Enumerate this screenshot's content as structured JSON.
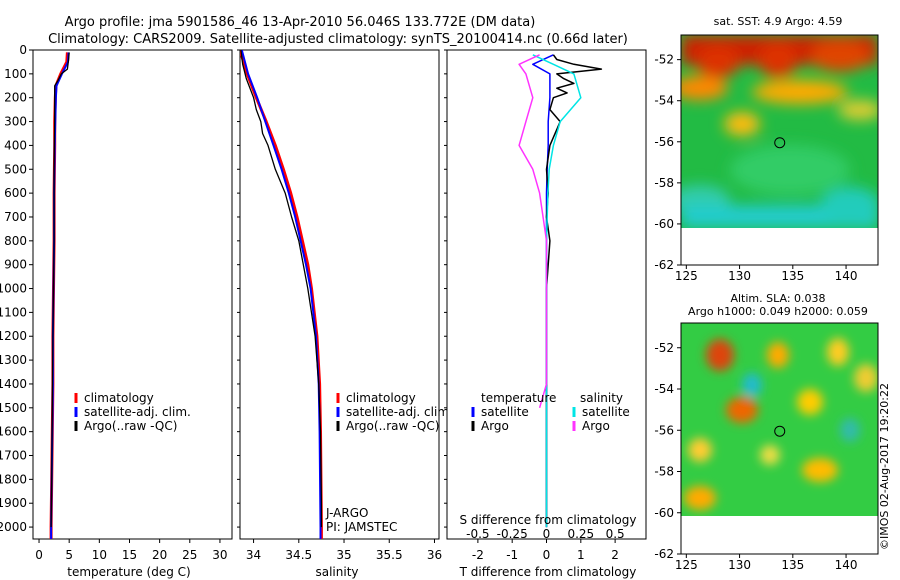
{
  "header": {
    "line1": "Argo profile: jma 5901586_46 13-Apr-2010 56.046S 133.772E (DM data)",
    "line2": "Climatology: CARS2009. Satellite-adjusted climatology: synTS_20100414.nc (0.66d later)"
  },
  "depth_ticks": [
    0,
    100,
    200,
    300,
    400,
    500,
    600,
    700,
    800,
    900,
    1000,
    1100,
    1200,
    1300,
    1400,
    1500,
    1600,
    1700,
    1800,
    1900,
    2000
  ],
  "colors": {
    "climatology": "#ff0000",
    "satellite": "#0000ff",
    "argo": "#000000",
    "sal_satellite": "#00e5e5",
    "sal_argo": "#ff33ff"
  },
  "chart_data": [
    {
      "type": "line",
      "panel": "temperature",
      "xlabel": "temperature (deg C)",
      "xlim": [
        -1,
        32
      ],
      "ylim": [
        2050,
        0
      ],
      "xticks": [
        0,
        5,
        10,
        15,
        20,
        25,
        30
      ],
      "legend": [
        "climatology",
        "satellite-adj. clim.",
        "Argo(..raw -QC)"
      ],
      "series": [
        {
          "name": "climatology",
          "depth": [
            10,
            50,
            100,
            150,
            200,
            300,
            400,
            600,
            800,
            1000,
            1200,
            1400,
            1600,
            1800,
            2000,
            2050
          ],
          "values": [
            4.7,
            4.6,
            3.6,
            2.8,
            2.7,
            2.6,
            2.6,
            2.5,
            2.5,
            2.4,
            2.3,
            2.3,
            2.2,
            2.1,
            2.0,
            2.0
          ]
        },
        {
          "name": "satellite-adj. clim.",
          "depth": [
            10,
            50,
            100,
            150,
            200,
            300,
            400,
            600,
            800,
            1000,
            1200,
            1400,
            1600,
            1800,
            2000,
            2050
          ],
          "values": [
            4.9,
            4.8,
            3.8,
            2.9,
            2.8,
            2.7,
            2.6,
            2.5,
            2.5,
            2.4,
            2.3,
            2.3,
            2.2,
            2.1,
            2.0,
            2.0
          ]
        },
        {
          "name": "Argo(..raw -QC)",
          "depth": [
            10,
            40,
            80,
            100,
            130,
            150,
            200,
            300,
            500,
            800,
            1200,
            1500,
            1800,
            2000
          ],
          "values": [
            5.0,
            4.9,
            4.7,
            3.7,
            3.1,
            2.6,
            2.6,
            2.6,
            2.5,
            2.5,
            2.3,
            2.2,
            2.1,
            2.0
          ]
        }
      ]
    },
    {
      "type": "line",
      "panel": "salinity",
      "xlabel": "salinity",
      "xlim": [
        33.85,
        36.05
      ],
      "ylim": [
        2050,
        0
      ],
      "xticks": [
        34,
        34.5,
        35,
        35.5,
        36
      ],
      "legend": [
        "climatology",
        "satellite-adj. clim.",
        "Argo(..raw -QC)"
      ],
      "annotations": [
        "J-ARGO",
        "PI: JAMSTEC"
      ],
      "series": [
        {
          "name": "climatology",
          "depth": [
            0,
            100,
            200,
            300,
            400,
            500,
            600,
            700,
            800,
            900,
            1000,
            1200,
            1400,
            1600,
            2000,
            2050
          ],
          "values": [
            33.85,
            33.93,
            34.03,
            34.14,
            34.24,
            34.33,
            34.41,
            34.48,
            34.54,
            34.6,
            34.64,
            34.7,
            34.73,
            34.74,
            34.75,
            34.75
          ]
        },
        {
          "name": "satellite-adj. clim.",
          "depth": [
            0,
            100,
            200,
            300,
            400,
            500,
            600,
            700,
            800,
            900,
            1000,
            1200,
            1400,
            1600,
            2000,
            2050
          ],
          "values": [
            33.87,
            33.94,
            34.04,
            34.13,
            34.22,
            34.31,
            34.39,
            34.46,
            34.52,
            34.58,
            34.63,
            34.69,
            34.72,
            34.73,
            34.74,
            34.74
          ]
        },
        {
          "name": "Argo(..raw -QC)",
          "depth": [
            0,
            60,
            120,
            200,
            250,
            300,
            350,
            400,
            500,
            600,
            700,
            800,
            1000,
            1200,
            1400,
            1600,
            1900,
            2000
          ],
          "values": [
            33.86,
            33.88,
            33.92,
            34.0,
            34.03,
            34.08,
            34.1,
            34.16,
            34.24,
            34.35,
            34.42,
            34.5,
            34.6,
            34.68,
            34.72,
            34.74,
            34.75,
            34.75
          ]
        }
      ]
    },
    {
      "type": "line",
      "panel": "differences",
      "xlabel": "T difference from climatology",
      "x2label": "S difference from climatology",
      "xlim": [
        -2.9,
        2.9
      ],
      "ylim": [
        2050,
        0
      ],
      "xticks": [
        -2,
        -1,
        0,
        1,
        2
      ],
      "x2ticks": [
        "-0.5",
        "-0.25",
        "0",
        "0.25",
        "0.5"
      ],
      "legend_headers": [
        "temperature",
        "salinity"
      ],
      "legend": [
        "satellite",
        "Argo",
        "satellite",
        "Argo"
      ],
      "series": [
        {
          "name": "temperature satellite",
          "depth": [
            20,
            60,
            100,
            150,
            200,
            300,
            400,
            500,
            600,
            800,
            1000,
            1200,
            1400,
            1600,
            2000
          ],
          "values": [
            0.2,
            -0.4,
            0.1,
            0.1,
            0.1,
            0.05,
            0.05,
            0.02,
            0.0,
            0.0,
            0.0,
            0.0,
            0.0,
            0.0,
            0.0
          ]
        },
        {
          "name": "temperature Argo",
          "depth": [
            20,
            40,
            60,
            80,
            100,
            120,
            140,
            160,
            180,
            200,
            250,
            300,
            400,
            500,
            600,
            700,
            800,
            1000,
            1200,
            1400,
            1600,
            1800,
            2000
          ],
          "values": [
            0.2,
            0.3,
            0.8,
            1.6,
            0.3,
            0.5,
            0.8,
            0.3,
            0.6,
            0.2,
            0.1,
            0.4,
            0.1,
            0.0,
            0.05,
            0.0,
            0.1,
            0.0,
            0.0,
            0.0,
            0.0,
            0.0,
            0.0
          ]
        },
        {
          "name": "salinity satellite",
          "depth": [
            20,
            60,
            100,
            200,
            300,
            400,
            500,
            600,
            800,
            1000,
            1200,
            1400,
            1600,
            2000
          ],
          "values": [
            -0.1,
            0.05,
            0.2,
            0.25,
            0.1,
            0.05,
            0.02,
            0.01,
            0.0,
            0.0,
            0.0,
            0.0,
            0.0,
            0.0
          ]
        },
        {
          "name": "salinity Argo",
          "depth": [
            20,
            60,
            100,
            200,
            300,
            400,
            500,
            600,
            800,
            1000,
            1200,
            1400,
            1500
          ],
          "values": [
            -0.05,
            -0.2,
            -0.15,
            -0.1,
            -0.15,
            -0.2,
            -0.1,
            -0.05,
            0.0,
            0.0,
            0.0,
            0.0,
            -0.05
          ]
        }
      ]
    },
    {
      "type": "heatmap",
      "panel": "sst_map",
      "title": "sat. SST: 4.9 Argo: 4.59",
      "xlim": [
        124.5,
        143
      ],
      "ylim": [
        -62,
        -50.8
      ],
      "xticks": [
        125,
        130,
        135,
        140
      ],
      "yticks": [
        -52,
        -54,
        -56,
        -58,
        -60,
        -62
      ],
      "marker": {
        "lon": 133.772,
        "lat": -56.046
      }
    },
    {
      "type": "heatmap",
      "panel": "sla_map",
      "title": "Altim. SLA: 0.038",
      "subtitle": "Argo h1000: 0.049 h2000: 0.059",
      "xlim": [
        124.5,
        143
      ],
      "ylim": [
        -62,
        -50.8
      ],
      "xticks": [
        125,
        130,
        135,
        140
      ],
      "yticks": [
        -52,
        -54,
        -56,
        -58,
        -60,
        -62
      ],
      "marker": {
        "lon": 133.772,
        "lat": -56.046
      }
    }
  ],
  "footer": {
    "credit": "©IMOS 02-Aug-2017 19:20:22"
  }
}
